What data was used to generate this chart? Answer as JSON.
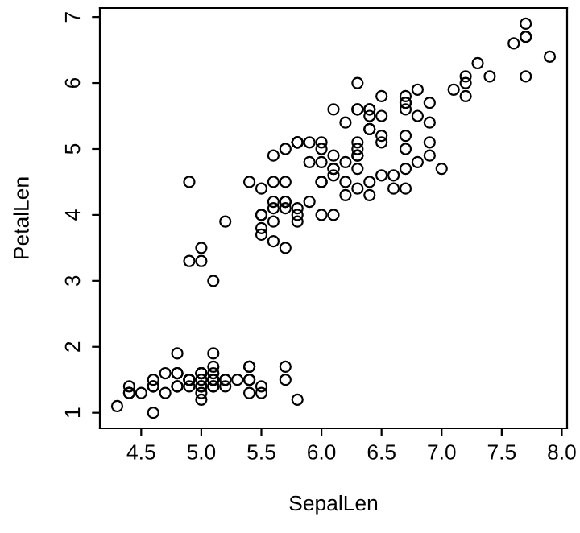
{
  "chart_data": {
    "type": "scatter",
    "xlabel": "SepalLen",
    "ylabel": "PetalLen",
    "marker": "circle",
    "grid": false,
    "legend": false,
    "xlim": [
      4.156,
      8.044
    ],
    "ylim": [
      0.764,
      7.136
    ],
    "xticks": [
      4.5,
      {
        "value": 5,
        "label": "5.0"
      },
      5.5,
      {
        "value": 6,
        "label": "6.0"
      },
      6.5,
      {
        "value": 7,
        "label": "7.0"
      },
      7.5,
      {
        "value": 8,
        "label": "8.0"
      }
    ],
    "yticks": [
      1,
      2,
      3,
      4,
      5,
      6,
      7
    ],
    "series": [
      {
        "color": "#000000",
        "x": [
          5.1,
          4.9,
          4.7,
          4.6,
          5.0,
          5.4,
          4.6,
          5.0,
          4.4,
          4.9,
          5.4,
          4.8,
          4.8,
          4.3,
          5.8,
          5.7,
          5.4,
          5.1,
          5.7,
          5.1,
          5.4,
          5.1,
          4.6,
          5.1,
          4.8,
          5.0,
          5.0,
          5.2,
          5.2,
          4.7,
          4.8,
          5.4,
          5.2,
          5.5,
          4.9,
          5.0,
          5.5,
          4.9,
          4.4,
          5.1,
          5.0,
          4.5,
          4.4,
          5.0,
          5.1,
          4.8,
          5.1,
          4.6,
          5.3,
          5.0,
          7.0,
          6.4,
          6.9,
          5.5,
          6.5,
          5.7,
          6.3,
          4.9,
          6.6,
          5.2,
          5.0,
          5.9,
          6.0,
          6.1,
          5.6,
          6.7,
          5.6,
          5.8,
          6.2,
          5.6,
          5.9,
          6.1,
          6.3,
          6.1,
          6.4,
          6.6,
          6.8,
          6.7,
          6.0,
          5.7,
          5.5,
          5.5,
          5.8,
          6.0,
          5.4,
          6.0,
          6.7,
          6.3,
          5.6,
          5.5,
          5.5,
          6.1,
          5.8,
          5.0,
          5.6,
          5.7,
          5.7,
          6.2,
          5.1,
          5.7,
          6.3,
          5.8,
          7.1,
          6.3,
          6.5,
          7.6,
          4.9,
          7.3,
          6.7,
          7.2,
          6.5,
          6.4,
          6.8,
          5.7,
          5.8,
          6.4,
          6.5,
          7.7,
          7.7,
          6.0,
          6.9,
          5.6,
          7.7,
          6.3,
          6.7,
          7.2,
          6.2,
          6.1,
          6.4,
          7.2,
          7.4,
          7.9,
          6.4,
          6.3,
          6.1,
          7.7,
          6.3,
          6.4,
          6.0,
          6.9,
          6.7,
          6.9,
          5.8,
          6.8,
          6.7,
          6.7,
          6.3,
          6.5,
          6.2,
          5.9
        ],
        "values": [
          1.4,
          1.4,
          1.3,
          1.5,
          1.4,
          1.7,
          1.4,
          1.5,
          1.4,
          1.5,
          1.5,
          1.6,
          1.4,
          1.1,
          1.2,
          1.5,
          1.3,
          1.4,
          1.7,
          1.5,
          1.7,
          1.5,
          1.0,
          1.7,
          1.9,
          1.6,
          1.6,
          1.5,
          1.4,
          1.6,
          1.6,
          1.5,
          1.5,
          1.4,
          1.5,
          1.2,
          1.3,
          1.5,
          1.3,
          1.5,
          1.3,
          1.3,
          1.3,
          1.6,
          1.9,
          1.4,
          1.6,
          1.4,
          1.5,
          1.4,
          4.7,
          4.5,
          4.9,
          4.0,
          4.6,
          4.5,
          4.7,
          3.3,
          4.6,
          3.9,
          3.5,
          4.2,
          4.0,
          4.7,
          3.6,
          4.4,
          4.5,
          4.1,
          4.5,
          3.9,
          4.8,
          4.0,
          4.9,
          4.7,
          4.3,
          4.4,
          4.8,
          5.0,
          4.5,
          3.5,
          3.8,
          3.7,
          3.9,
          5.1,
          4.5,
          4.5,
          4.7,
          4.4,
          4.1,
          4.0,
          4.4,
          4.6,
          4.0,
          3.3,
          4.2,
          4.2,
          4.2,
          4.3,
          3.0,
          4.1,
          6.0,
          5.1,
          5.9,
          5.6,
          5.8,
          6.6,
          4.5,
          6.3,
          5.8,
          6.1,
          5.1,
          5.3,
          5.5,
          5.0,
          5.1,
          5.3,
          5.5,
          6.7,
          6.9,
          5.0,
          5.7,
          4.9,
          6.7,
          4.9,
          5.7,
          6.0,
          4.8,
          4.9,
          5.6,
          5.8,
          6.1,
          6.4,
          5.6,
          5.1,
          5.6,
          6.1,
          5.6,
          5.5,
          4.8,
          5.4,
          5.6,
          5.1,
          5.1,
          5.9,
          5.7,
          5.2,
          5.0,
          5.2,
          5.4,
          5.1
        ]
      }
    ]
  }
}
